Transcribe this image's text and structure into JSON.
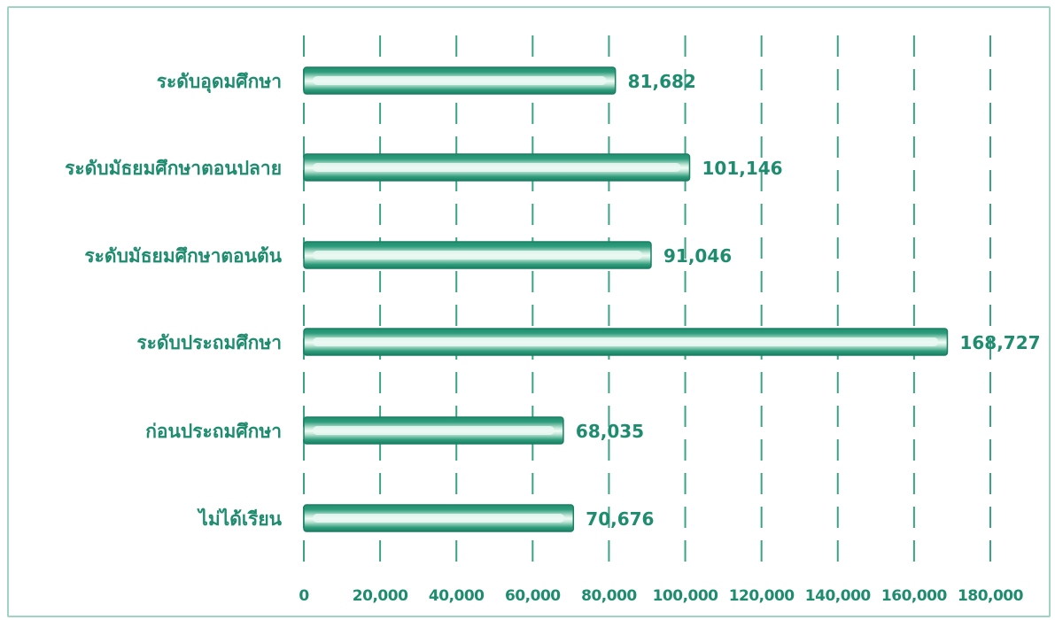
{
  "colors": {
    "bar_dark": "#1f8f6f",
    "bar_mid": "#8fd3b8",
    "bar_highlight": "#f2fbf7",
    "grid": "#3aa383",
    "text": "#1e8c6e",
    "frame": "#9fd4c2"
  },
  "chart_data": {
    "type": "bar",
    "orientation": "horizontal",
    "categories": [
      "ระดับอุดมศึกษา",
      "ระดับมัธยมศึกษาตอนปลาย",
      "ระดับมัธยมศึกษาตอนต้น",
      "ระดับประถมศึกษา",
      "ก่อนประถมศึกษา",
      "ไม่ได้เรียน"
    ],
    "values": [
      81682,
      101146,
      91046,
      168727,
      68035,
      70676
    ],
    "value_labels": [
      "81,682",
      "101,146",
      "91,046",
      "168,727",
      "68,035",
      "70,676"
    ],
    "xlim": [
      0,
      180000
    ],
    "x_ticks": [
      0,
      20000,
      40000,
      60000,
      80000,
      100000,
      120000,
      140000,
      160000,
      180000
    ],
    "x_tick_labels": [
      "0",
      "20,000",
      "40,000",
      "60,000",
      "80,000",
      "100,000",
      "120,000",
      "140,000",
      "160,000",
      "180,000"
    ],
    "title": "",
    "xlabel": "",
    "ylabel": "",
    "grid": "vertical dashed",
    "legend": "none"
  }
}
